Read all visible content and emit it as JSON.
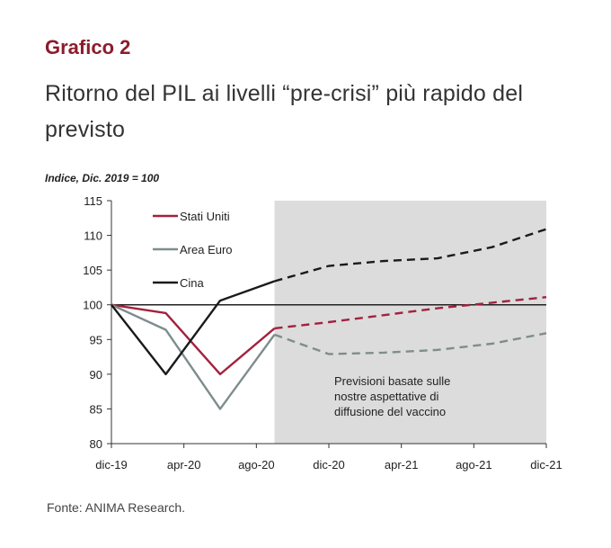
{
  "heading": "Grafico 2",
  "subtitle": "Ritorno del PIL ai livelli “pre-crisi” più rapido del previsto",
  "source": "Fonte: ANIMA Research.",
  "colors": {
    "heading": "#8c1c2c",
    "stati_uniti": "#a3213f",
    "area_euro": "#7f8c8d",
    "cina": "#1a1a1a",
    "forecast_band": "#dcdcdc"
  },
  "chart_data": {
    "type": "line",
    "y_unit_label": "Indice, Dic. 2019 = 100",
    "x_ticks": [
      "dic-19",
      "apr-20",
      "ago-20",
      "dic-20",
      "apr-21",
      "ago-21",
      "dic-21"
    ],
    "ylim": [
      80,
      115
    ],
    "y_ticks": [
      80,
      85,
      90,
      95,
      100,
      105,
      110,
      115
    ],
    "baseline": 100,
    "forecast_start": "set-20",
    "forecast_annotation": [
      "Previsioni basate sulle",
      "nostre aspettative di",
      "diffusione del vaccino"
    ],
    "legend_position": "top-left",
    "series": [
      {
        "name": "Stati Uniti",
        "color_key": "stati_uniti",
        "x": [
          "dic-19",
          "mar-20",
          "giu-20",
          "set-20",
          "dic-20",
          "mar-21",
          "giu-21",
          "set-21",
          "dic-21"
        ],
        "values": [
          100,
          98.8,
          90,
          96.6,
          97.5,
          98.5,
          99.5,
          100.3,
          101.1
        ]
      },
      {
        "name": "Area Euro",
        "color_key": "area_euro",
        "x": [
          "dic-19",
          "mar-20",
          "giu-20",
          "set-20",
          "dic-20",
          "mar-21",
          "giu-21",
          "set-21",
          "dic-21"
        ],
        "values": [
          100,
          96.4,
          85,
          95.7,
          92.9,
          93.1,
          93.5,
          94.4,
          95.9
        ]
      },
      {
        "name": "Cina",
        "color_key": "cina",
        "x": [
          "dic-19",
          "mar-20",
          "giu-20",
          "set-20",
          "dic-20",
          "mar-21",
          "giu-21",
          "set-21",
          "dic-21"
        ],
        "values": [
          100,
          90,
          100.6,
          103.4,
          105.6,
          106.3,
          106.7,
          108.3,
          110.9
        ]
      }
    ]
  }
}
